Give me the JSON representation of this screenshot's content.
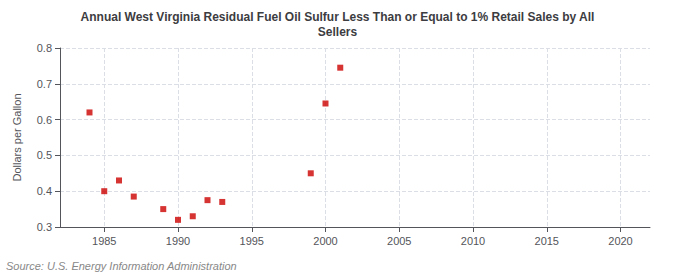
{
  "chart_data": {
    "type": "scatter",
    "title": "Annual West Virginia Residual Fuel Oil Sulfur Less Than or Equal to 1% Retail Sales by All\nSellers",
    "ylabel": "Dollars per Gallon",
    "annotations": [
      "Source: U.S. Energy Information Administration"
    ],
    "x": [
      1984,
      1985,
      1986,
      1987,
      1989,
      1990,
      1991,
      1992,
      1993,
      1999,
      2000,
      2001
    ],
    "values": [
      0.62,
      0.4,
      0.43,
      0.385,
      0.35,
      0.32,
      0.33,
      0.375,
      0.37,
      0.45,
      0.645,
      0.745
    ],
    "color": "#cc0000",
    "marker": "square",
    "xlim": [
      1982,
      2022
    ],
    "xticks": [
      1985,
      1990,
      1995,
      2000,
      2005,
      2010,
      2015,
      2020
    ],
    "ylim": [
      0.3,
      0.8
    ],
    "yticks": [
      0.3,
      0.4,
      0.5,
      0.6,
      0.7,
      0.8
    ],
    "grid": true
  }
}
